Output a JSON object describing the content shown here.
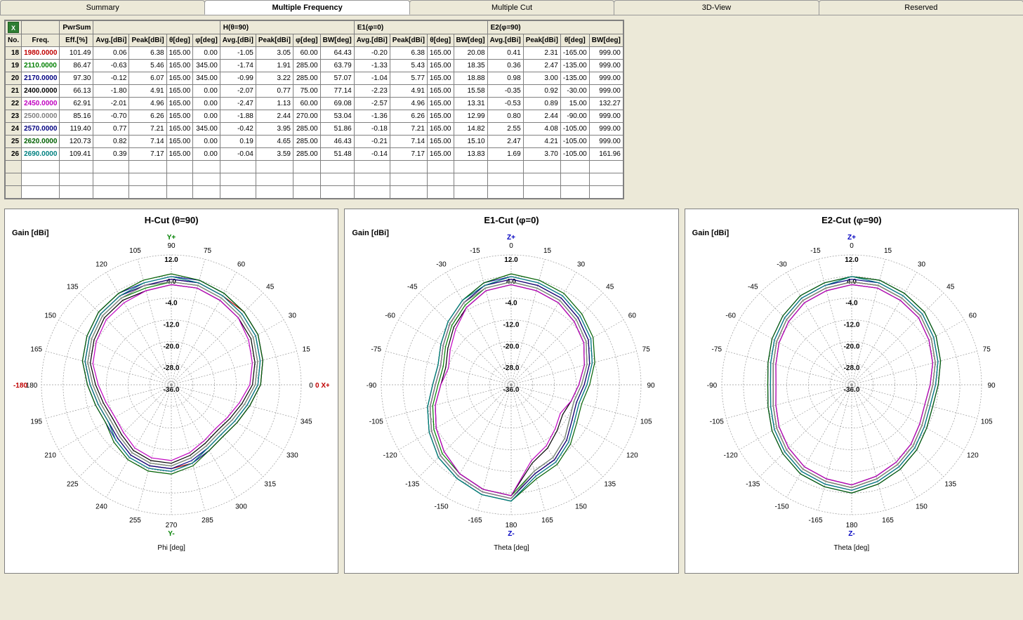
{
  "tabs": [
    {
      "label": "Summary",
      "active": false
    },
    {
      "label": "Multiple Frequency",
      "active": true
    },
    {
      "label": "Multiple Cut",
      "active": false
    },
    {
      "label": "3D-View",
      "active": false
    },
    {
      "label": "Reserved",
      "active": false
    }
  ],
  "table": {
    "excel_icon": "X",
    "groups": [
      {
        "label": "",
        "span": 1
      },
      {
        "label": "",
        "span": 1
      },
      {
        "label": "PwrSum",
        "span": 1
      },
      {
        "label": "",
        "span": 4
      },
      {
        "label": "H(θ=90)",
        "span": 4
      },
      {
        "label": "E1(φ=0)",
        "span": 4
      },
      {
        "label": "E2(φ=90)",
        "span": 4
      }
    ],
    "columns": [
      "No.",
      "Freq.",
      "Eff.[%]",
      "Avg.[dBi]",
      "Peak[dBi]",
      "θ[deg]",
      "φ[deg]",
      "Avg.[dBi]",
      "Peak[dBi]",
      "φ[deg]",
      "BW[deg]",
      "Avg.[dBi]",
      "Peak[dBi]",
      "θ[deg]",
      "BW[deg]",
      "Avg.[dBi]",
      "Peak[dBi]",
      "θ[deg]",
      "BW[deg]"
    ],
    "rows": [
      {
        "no": "18",
        "freq": "1980.0000",
        "freq_color": "#c00000",
        "cells": [
          "101.49",
          "0.06",
          "6.38",
          "165.00",
          "0.00",
          "-1.05",
          "3.05",
          "60.00",
          "64.43",
          "-0.20",
          "6.38",
          "165.00",
          "20.08",
          "0.41",
          "2.31",
          "-165.00",
          "999.00"
        ]
      },
      {
        "no": "19",
        "freq": "2110.0000",
        "freq_color": "#008000",
        "cells": [
          "86.47",
          "-0.63",
          "5.46",
          "165.00",
          "345.00",
          "-1.74",
          "1.91",
          "285.00",
          "63.79",
          "-1.33",
          "5.43",
          "165.00",
          "18.35",
          "0.36",
          "2.47",
          "-135.00",
          "999.00"
        ]
      },
      {
        "no": "20",
        "freq": "2170.0000",
        "freq_color": "#000080",
        "cells": [
          "97.30",
          "-0.12",
          "6.07",
          "165.00",
          "345.00",
          "-0.99",
          "3.22",
          "285.00",
          "57.07",
          "-1.04",
          "5.77",
          "165.00",
          "18.88",
          "0.98",
          "3.00",
          "-135.00",
          "999.00"
        ]
      },
      {
        "no": "21",
        "freq": "2400.0000",
        "freq_color": "#000000",
        "cells": [
          "66.13",
          "-1.80",
          "4.91",
          "165.00",
          "0.00",
          "-2.07",
          "0.77",
          "75.00",
          "77.14",
          "-2.23",
          "4.91",
          "165.00",
          "15.58",
          "-0.35",
          "0.92",
          "-30.00",
          "999.00"
        ]
      },
      {
        "no": "22",
        "freq": "2450.0000",
        "freq_color": "#c000c0",
        "cells": [
          "62.91",
          "-2.01",
          "4.96",
          "165.00",
          "0.00",
          "-2.47",
          "1.13",
          "60.00",
          "69.08",
          "-2.57",
          "4.96",
          "165.00",
          "13.31",
          "-0.53",
          "0.89",
          "15.00",
          "132.27"
        ]
      },
      {
        "no": "23",
        "freq": "2500.0000",
        "freq_color": "#808080",
        "cells": [
          "85.16",
          "-0.70",
          "6.26",
          "165.00",
          "0.00",
          "-1.88",
          "2.44",
          "270.00",
          "53.04",
          "-1.36",
          "6.26",
          "165.00",
          "12.99",
          "0.80",
          "2.44",
          "-90.00",
          "999.00"
        ]
      },
      {
        "no": "24",
        "freq": "2570.0000",
        "freq_color": "#000080",
        "cells": [
          "119.40",
          "0.77",
          "7.21",
          "165.00",
          "345.00",
          "-0.42",
          "3.95",
          "285.00",
          "51.86",
          "-0.18",
          "7.21",
          "165.00",
          "14.82",
          "2.55",
          "4.08",
          "-105.00",
          "999.00"
        ]
      },
      {
        "no": "25",
        "freq": "2620.0000",
        "freq_color": "#006000",
        "cells": [
          "120.73",
          "0.82",
          "7.14",
          "165.00",
          "0.00",
          "0.19",
          "4.65",
          "285.00",
          "46.43",
          "-0.21",
          "7.14",
          "165.00",
          "15.10",
          "2.47",
          "4.21",
          "-105.00",
          "999.00"
        ]
      },
      {
        "no": "26",
        "freq": "2690.0000",
        "freq_color": "#008080",
        "cells": [
          "109.41",
          "0.39",
          "7.17",
          "165.00",
          "0.00",
          "-0.04",
          "3.59",
          "285.00",
          "51.48",
          "-0.14",
          "7.17",
          "165.00",
          "13.83",
          "1.69",
          "3.70",
          "-105.00",
          "161.96"
        ]
      }
    ],
    "empty_rows": 3
  },
  "polar": {
    "gain_label": "Gain [dBi]",
    "ring_values": [
      "12.0",
      "4.0",
      "-4.0",
      "-12.0",
      "-20.0",
      "-28.0",
      "-36.0"
    ],
    "ring_gain": [
      12,
      4,
      -4,
      -12,
      -20,
      -28,
      -36
    ],
    "gain_min": -36,
    "gain_max": 12,
    "angle_step": 15,
    "colors": [
      "#c00000",
      "#008000",
      "#000080",
      "#000000",
      "#c000c0",
      "#808080",
      "#2020a0",
      "#006000",
      "#008080"
    ]
  },
  "charts": [
    {
      "title": "H-Cut (θ=90)",
      "axis_bottom": "Phi [deg]",
      "top_marker": "Y+",
      "top_color": "#008000",
      "right_marker": "0  X+",
      "right_color": "#c00000",
      "left_marker": "X- -180",
      "left_color": "#c00000",
      "bottom_marker": "Y-",
      "bottom_color": "#008000",
      "angle_labels_top_zero": true,
      "traces": [
        [
          3,
          3,
          2,
          2,
          1,
          -1,
          -3,
          -6,
          -8,
          -9,
          -8,
          -6,
          -5,
          -5,
          -6,
          -8,
          -9,
          -8,
          -6,
          -3,
          -1,
          1,
          2,
          2
        ],
        [
          2,
          2,
          1,
          0,
          -1,
          -3,
          -5,
          -8,
          -10,
          -11,
          -10,
          -8,
          -6,
          -6,
          -7,
          -9,
          -10,
          -9,
          -7,
          -4,
          -2,
          0,
          1,
          1
        ],
        [
          3,
          3,
          2,
          1,
          0,
          -2,
          -4,
          -7,
          -9,
          -10,
          -9,
          -7,
          -5,
          -5,
          -6,
          -8,
          -9,
          -8,
          -6,
          -3,
          -1,
          1,
          2,
          2
        ],
        [
          1,
          1,
          0,
          -1,
          -2,
          -4,
          -6,
          -9,
          -11,
          -12,
          -11,
          -9,
          -7,
          -7,
          -8,
          -10,
          -11,
          -10,
          -8,
          -5,
          -3,
          -1,
          0,
          0
        ],
        [
          1,
          1,
          0,
          -1,
          -3,
          -5,
          -7,
          -10,
          -12,
          -13,
          -12,
          -10,
          -8,
          -8,
          -9,
          -11,
          -12,
          -11,
          -9,
          -6,
          -4,
          -2,
          -1,
          0
        ],
        [
          2,
          2,
          1,
          0,
          -1,
          -3,
          -5,
          -8,
          -10,
          -11,
          -10,
          -8,
          -6,
          -6,
          -7,
          -9,
          -10,
          -9,
          -7,
          -4,
          -2,
          0,
          1,
          2
        ],
        [
          4,
          4,
          3,
          2,
          1,
          -1,
          -3,
          -6,
          -8,
          -9,
          -8,
          -6,
          -4,
          -4,
          -5,
          -7,
          -8,
          -7,
          -5,
          -2,
          0,
          2,
          3,
          3
        ],
        [
          5,
          4,
          3,
          2,
          1,
          -1,
          -3,
          -6,
          -8,
          -9,
          -8,
          -5,
          -3,
          -3,
          -4,
          -6,
          -8,
          -7,
          -5,
          -2,
          0,
          2,
          3,
          4
        ],
        [
          4,
          3,
          2,
          1,
          0,
          -2,
          -4,
          -7,
          -9,
          -10,
          -9,
          -6,
          -4,
          -4,
          -5,
          -7,
          -9,
          -8,
          -6,
          -3,
          -1,
          1,
          2,
          3
        ]
      ]
    },
    {
      "title": "E1-Cut (φ=0)",
      "axis_bottom": "Theta [deg]",
      "top_marker": "Z+",
      "top_color": "#0000c0",
      "right_marker": "",
      "right_color": "#000",
      "left_marker": "",
      "left_color": "#000",
      "bottom_marker": "Z-",
      "bottom_color": "#0000c0",
      "angle_labels_top_zero": true,
      "traces": [
        [
          3,
          2,
          1,
          -1,
          -3,
          -6,
          -9,
          -11,
          -10,
          -7,
          -4,
          -2,
          6,
          5,
          3,
          1,
          -2,
          -5,
          -8,
          -9,
          -7,
          -4,
          -1,
          2
        ],
        [
          2,
          1,
          0,
          -2,
          -4,
          -7,
          -10,
          -12,
          -11,
          -8,
          -5,
          -3,
          5,
          4,
          2,
          0,
          -3,
          -6,
          -9,
          -10,
          -8,
          -5,
          -2,
          1
        ],
        [
          3,
          2,
          1,
          -1,
          -3,
          -6,
          -9,
          -11,
          -10,
          -7,
          -4,
          -2,
          6,
          5,
          3,
          1,
          -2,
          -5,
          -8,
          -9,
          -7,
          -4,
          -1,
          2
        ],
        [
          1,
          0,
          -1,
          -3,
          -5,
          -8,
          -11,
          -13,
          -14,
          -12,
          -9,
          -6,
          5,
          4,
          2,
          -1,
          -4,
          -7,
          -10,
          -11,
          -9,
          -6,
          -3,
          0
        ],
        [
          1,
          0,
          -1,
          -3,
          -5,
          -8,
          -11,
          -13,
          -15,
          -13,
          -10,
          -7,
          5,
          4,
          2,
          -1,
          -4,
          -7,
          -10,
          -12,
          -10,
          -7,
          -3,
          0
        ],
        [
          2,
          1,
          0,
          -2,
          -4,
          -7,
          -10,
          -12,
          -11,
          -8,
          -5,
          -3,
          6,
          5,
          3,
          1,
          -2,
          -5,
          -8,
          -9,
          -7,
          -4,
          -1,
          1
        ],
        [
          4,
          3,
          2,
          0,
          -2,
          -5,
          -8,
          -10,
          -9,
          -6,
          -3,
          -1,
          7,
          6,
          4,
          2,
          -1,
          -4,
          -7,
          -8,
          -6,
          -3,
          0,
          3
        ],
        [
          5,
          4,
          3,
          1,
          -1,
          -4,
          -7,
          -9,
          -8,
          -5,
          -2,
          0,
          7,
          6,
          4,
          2,
          -1,
          -4,
          -7,
          -8,
          -6,
          -3,
          0,
          3
        ],
        [
          4,
          3,
          2,
          0,
          -2,
          -5,
          -8,
          -10,
          -9,
          -6,
          -3,
          -1,
          7,
          6,
          4,
          2,
          -1,
          -4,
          -7,
          -8,
          -6,
          -3,
          0,
          2
        ]
      ]
    },
    {
      "title": "E2-Cut (φ=90)",
      "axis_bottom": "Theta [deg]",
      "top_marker": "Z+",
      "top_color": "#0000c0",
      "right_marker": "",
      "right_color": "#000",
      "left_marker": "",
      "left_color": "#000",
      "bottom_marker": "Z-",
      "bottom_color": "#0000c0",
      "angle_labels_top_zero": true,
      "traces": [
        [
          2,
          2,
          1,
          0,
          -2,
          -4,
          -6,
          -7,
          -6,
          -4,
          -2,
          0,
          2,
          1,
          0,
          -2,
          -4,
          -6,
          -7,
          -6,
          -4,
          -2,
          0,
          1
        ],
        [
          2,
          2,
          1,
          0,
          -2,
          -4,
          -6,
          -7,
          -6,
          -4,
          -2,
          0,
          2,
          1,
          0,
          -2,
          -4,
          -6,
          -7,
          -6,
          -4,
          -2,
          0,
          1
        ],
        [
          3,
          3,
          2,
          1,
          -1,
          -3,
          -5,
          -6,
          -5,
          -3,
          -1,
          1,
          3,
          2,
          1,
          -1,
          -3,
          -5,
          -6,
          -5,
          -3,
          -1,
          1,
          2
        ],
        [
          1,
          1,
          0,
          -1,
          -3,
          -5,
          -7,
          -8,
          -7,
          -5,
          -3,
          -1,
          1,
          0,
          -1,
          -3,
          -5,
          -7,
          -8,
          -7,
          -5,
          -3,
          -1,
          0
        ],
        [
          1,
          1,
          0,
          -1,
          -3,
          -5,
          -7,
          -8,
          -7,
          -5,
          -3,
          -1,
          1,
          0,
          -1,
          -3,
          -5,
          -7,
          -8,
          -7,
          -5,
          -3,
          -1,
          0
        ],
        [
          2,
          2,
          1,
          0,
          -2,
          -4,
          -6,
          -7,
          -6,
          -4,
          -2,
          0,
          2,
          1,
          0,
          -2,
          -4,
          -6,
          -7,
          -6,
          -4,
          -2,
          0,
          1
        ],
        [
          4,
          4,
          3,
          2,
          0,
          -2,
          -4,
          -5,
          -4,
          -2,
          0,
          2,
          4,
          3,
          2,
          0,
          -2,
          -4,
          -5,
          -4,
          -2,
          0,
          2,
          3
        ],
        [
          4,
          4,
          3,
          2,
          0,
          -2,
          -4,
          -5,
          -4,
          -2,
          0,
          2,
          4,
          3,
          2,
          0,
          -2,
          -4,
          -5,
          -4,
          -2,
          0,
          2,
          3
        ],
        [
          4,
          3,
          2,
          1,
          -1,
          -3,
          -5,
          -6,
          -5,
          -3,
          -1,
          1,
          3,
          2,
          1,
          -1,
          -3,
          -5,
          -6,
          -5,
          -3,
          -1,
          1,
          2
        ]
      ]
    }
  ]
}
